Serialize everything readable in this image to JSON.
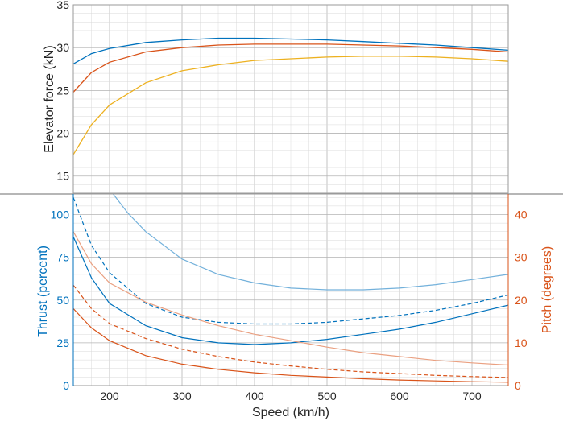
{
  "chart_data": [
    {
      "type": "line",
      "ylabel": "Elevator force (kN)",
      "ylim": [
        13,
        35
      ],
      "yticks": [
        15,
        20,
        25,
        30,
        35
      ],
      "xlim": [
        150,
        750
      ],
      "grid": true,
      "series": [
        {
          "color": "#0072BD",
          "x": [
            150,
            175,
            200,
            250,
            300,
            350,
            400,
            450,
            500,
            550,
            600,
            650,
            700,
            750
          ],
          "y": [
            28.1,
            29.3,
            29.9,
            30.6,
            30.9,
            31.1,
            31.1,
            31.0,
            30.9,
            30.7,
            30.5,
            30.3,
            30.0,
            29.7
          ]
        },
        {
          "color": "#D95319",
          "x": [
            150,
            175,
            200,
            250,
            300,
            350,
            400,
            450,
            500,
            550,
            600,
            650,
            700,
            750
          ],
          "y": [
            24.8,
            27.1,
            28.3,
            29.5,
            30.0,
            30.3,
            30.4,
            30.4,
            30.4,
            30.3,
            30.2,
            30.0,
            29.8,
            29.5
          ]
        },
        {
          "color": "#EDB120",
          "x": [
            150,
            175,
            200,
            250,
            300,
            350,
            400,
            450,
            500,
            550,
            600,
            650,
            700,
            750
          ],
          "y": [
            17.5,
            21.0,
            23.3,
            25.9,
            27.3,
            28.0,
            28.5,
            28.7,
            28.9,
            29.0,
            29.0,
            28.9,
            28.7,
            28.4
          ]
        }
      ]
    },
    {
      "type": "line",
      "xlabel": "Speed (km/h)",
      "xlim": [
        150,
        750
      ],
      "xticks": [
        200,
        300,
        400,
        500,
        600,
        700
      ],
      "ylabel_left": "Thrust (percent)",
      "ylim_left": [
        0,
        112
      ],
      "yticks_left": [
        0,
        25,
        50,
        75,
        100
      ],
      "ylabel_right": "Pitch (degrees)",
      "ylim_right": [
        0,
        44.8
      ],
      "yticks_right": [
        0,
        10,
        20,
        30,
        40
      ],
      "grid": true,
      "series": [
        {
          "axis": "left",
          "color": "#0072BD",
          "style": "light",
          "x": [
            205,
            225,
            250,
            300,
            350,
            400,
            450,
            500,
            550,
            600,
            650,
            700,
            750
          ],
          "y": [
            112,
            101,
            90,
            74,
            65,
            60,
            57,
            56,
            56,
            57,
            59,
            62,
            65
          ]
        },
        {
          "axis": "left",
          "color": "#0072BD",
          "style": "dashed",
          "x": [
            150,
            175,
            200,
            250,
            300,
            350,
            400,
            450,
            500,
            550,
            600,
            650,
            700,
            750
          ],
          "y": [
            110,
            82,
            66,
            48,
            40,
            37,
            36,
            36,
            37,
            39,
            41,
            44,
            48,
            53
          ]
        },
        {
          "axis": "left",
          "color": "#0072BD",
          "style": "solid",
          "x": [
            150,
            175,
            200,
            250,
            300,
            350,
            400,
            450,
            500,
            550,
            600,
            650,
            700,
            750
          ],
          "y": [
            87,
            63,
            48,
            35,
            28,
            25,
            24,
            25,
            27,
            30,
            33,
            37,
            42,
            47
          ]
        },
        {
          "axis": "right",
          "color": "#D95319",
          "style": "light",
          "x": [
            150,
            175,
            200,
            250,
            300,
            350,
            400,
            450,
            500,
            550,
            600,
            650,
            700,
            750
          ],
          "y": [
            36,
            28.5,
            24,
            19.5,
            16.5,
            14,
            12,
            10.5,
            9,
            7.7,
            6.8,
            5.9,
            5.3,
            4.8
          ]
        },
        {
          "axis": "right",
          "color": "#D95319",
          "style": "dashed",
          "x": [
            150,
            175,
            200,
            250,
            300,
            350,
            400,
            450,
            500,
            550,
            600,
            650,
            700,
            750
          ],
          "y": [
            23.5,
            18,
            14.5,
            11,
            8.5,
            6.8,
            5.5,
            4.6,
            3.8,
            3.2,
            2.8,
            2.4,
            2.1,
            1.9
          ]
        },
        {
          "axis": "right",
          "color": "#D95319",
          "style": "solid",
          "x": [
            150,
            175,
            200,
            250,
            300,
            350,
            400,
            450,
            500,
            550,
            600,
            650,
            700,
            750
          ],
          "y": [
            18,
            13.5,
            10.5,
            7,
            5,
            3.8,
            3,
            2.4,
            2,
            1.6,
            1.3,
            1.1,
            0.9,
            0.8
          ]
        }
      ]
    }
  ]
}
